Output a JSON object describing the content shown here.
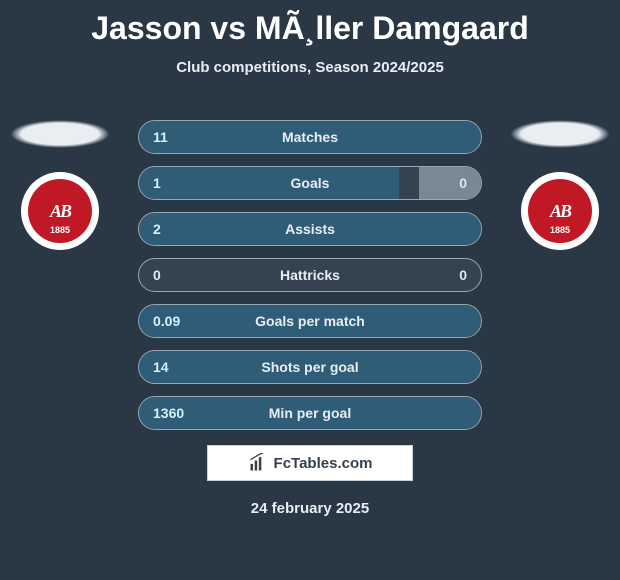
{
  "title": "Jasson vs MÃ¸ller Damgaard",
  "subtitle": "Club competitions, Season 2024/2025",
  "date": "24 february 2025",
  "footer": "FcTables.com",
  "badge": {
    "text": "AB",
    "bg": "#c01824",
    "outer": "#ffffff"
  },
  "colors": {
    "page_bg": "#2a3845",
    "row_bg": "#34434f",
    "row_border": "#9aa6b1",
    "left_fill": "#2f5d78",
    "right_fill": "#7a8893",
    "left_val": "#d3f0fd",
    "label": "#e7edf2"
  },
  "rows": [
    {
      "label": "Matches",
      "left": "11",
      "right": "",
      "left_pct": 100,
      "right_pct": 0
    },
    {
      "label": "Goals",
      "left": "1",
      "right": "0",
      "left_pct": 76,
      "right_pct": 18
    },
    {
      "label": "Assists",
      "left": "2",
      "right": "",
      "left_pct": 100,
      "right_pct": 0
    },
    {
      "label": "Hattricks",
      "left": "0",
      "right": "0",
      "left_pct": 0,
      "right_pct": 0
    },
    {
      "label": "Goals per match",
      "left": "0.09",
      "right": "",
      "left_pct": 100,
      "right_pct": 0
    },
    {
      "label": "Shots per goal",
      "left": "14",
      "right": "",
      "left_pct": 100,
      "right_pct": 0
    },
    {
      "label": "Min per goal",
      "left": "1360",
      "right": "",
      "left_pct": 100,
      "right_pct": 0
    }
  ]
}
